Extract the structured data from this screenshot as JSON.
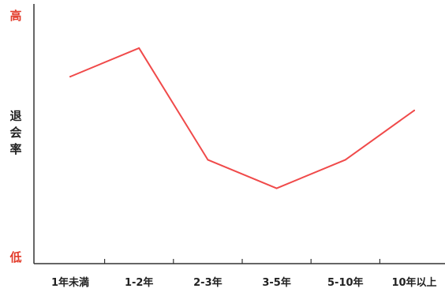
{
  "chart_data": {
    "type": "line",
    "categories": [
      "1年未満",
      "1-2年",
      "2-3年",
      "3-5年",
      "5-10年",
      "10年以上"
    ],
    "series": [
      {
        "values": [
          72,
          83,
          40,
          29,
          40,
          59
        ]
      }
    ],
    "ylim": [
      0,
      100
    ],
    "ylabel": "退会率",
    "y_high_label": "高",
    "y_low_label": "低",
    "xlabel": "",
    "title": "",
    "grid": false,
    "legend": "none"
  },
  "colors": {
    "series": "#f04a4a",
    "extreme_label": "#e23b2a",
    "axis": "#333333",
    "text": "#222222"
  }
}
